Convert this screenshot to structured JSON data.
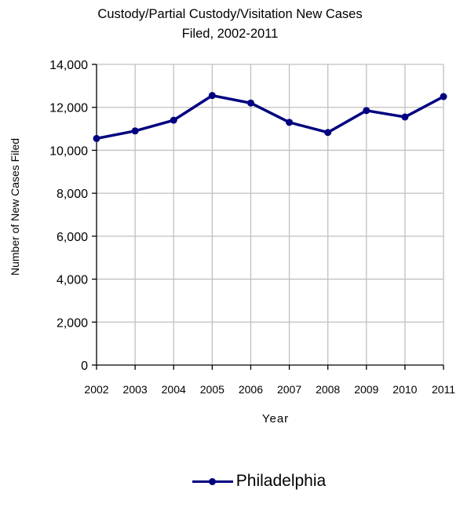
{
  "chart_data": {
    "type": "line",
    "title_lines": [
      "Custody/Partial Custody/Visitation New  Cases",
      "Filed, 2002-2011"
    ],
    "xlabel": "Year",
    "ylabel": "Number of New Cases Filed",
    "categories": [
      "2002",
      "2003",
      "2004",
      "2005",
      "2006",
      "2007",
      "2008",
      "2009",
      "2010",
      "2011"
    ],
    "series": [
      {
        "name": "Philadelphia",
        "values": [
          10550,
          10900,
          11400,
          12550,
          12200,
          11300,
          10830,
          11850,
          11550,
          12500
        ]
      }
    ],
    "ylim": [
      0,
      14000
    ],
    "yticks": [
      0,
      2000,
      4000,
      6000,
      8000,
      10000,
      12000,
      14000
    ],
    "ytick_labels": [
      "0",
      "2,000",
      "4,000",
      "6,000",
      "8,000",
      "10,000",
      "12,000",
      "14,000"
    ],
    "grid": true,
    "legend_position": "bottom",
    "colors": {
      "series": "#000080",
      "grid": "#c0c0c0",
      "axis": "#000000"
    }
  }
}
